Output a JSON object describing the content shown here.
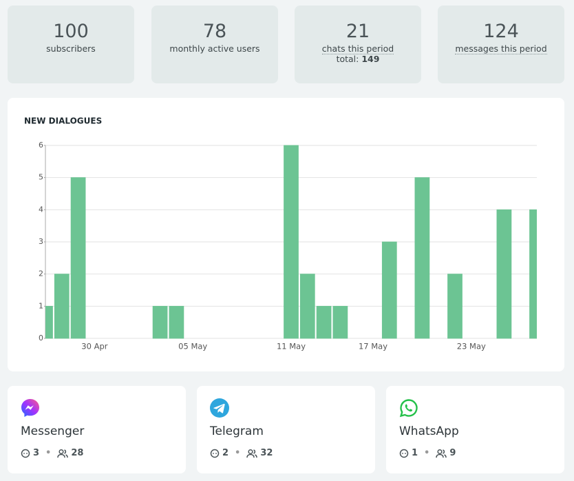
{
  "stats": [
    {
      "value": 100,
      "label": "subscribers"
    },
    {
      "value": 78,
      "label": "monthly active users"
    },
    {
      "value": 21,
      "label": "chats this period",
      "total_label": "total:",
      "total": 149
    },
    {
      "value": 124,
      "label": "messages this period"
    }
  ],
  "chart_data": {
    "type": "bar",
    "title": "NEW DIALOGUES",
    "color": "#6cc493",
    "categories": [
      null,
      null,
      null,
      "30 Apr",
      null,
      null,
      null,
      null,
      null,
      "05 May",
      null,
      null,
      null,
      null,
      null,
      "11 May",
      null,
      null,
      null,
      null,
      "17 May",
      null,
      null,
      null,
      null,
      null,
      "23 May",
      null,
      null,
      null,
      null
    ],
    "values": [
      1,
      2,
      5,
      0,
      0,
      0,
      0,
      1,
      1,
      0,
      0,
      0,
      0,
      0,
      0,
      6,
      2,
      1,
      1,
      0,
      0,
      3,
      0,
      5,
      0,
      2,
      0,
      0,
      4,
      0,
      4
    ],
    "ylim": [
      0,
      6
    ],
    "yticks": [
      0,
      1,
      2,
      3,
      4,
      5,
      6
    ],
    "grid": true
  },
  "channels": [
    {
      "name": "Messenger",
      "chats": 3,
      "users": 28
    },
    {
      "name": "Telegram",
      "chats": 2,
      "users": 32
    },
    {
      "name": "WhatsApp",
      "chats": 1,
      "users": 9
    }
  ]
}
